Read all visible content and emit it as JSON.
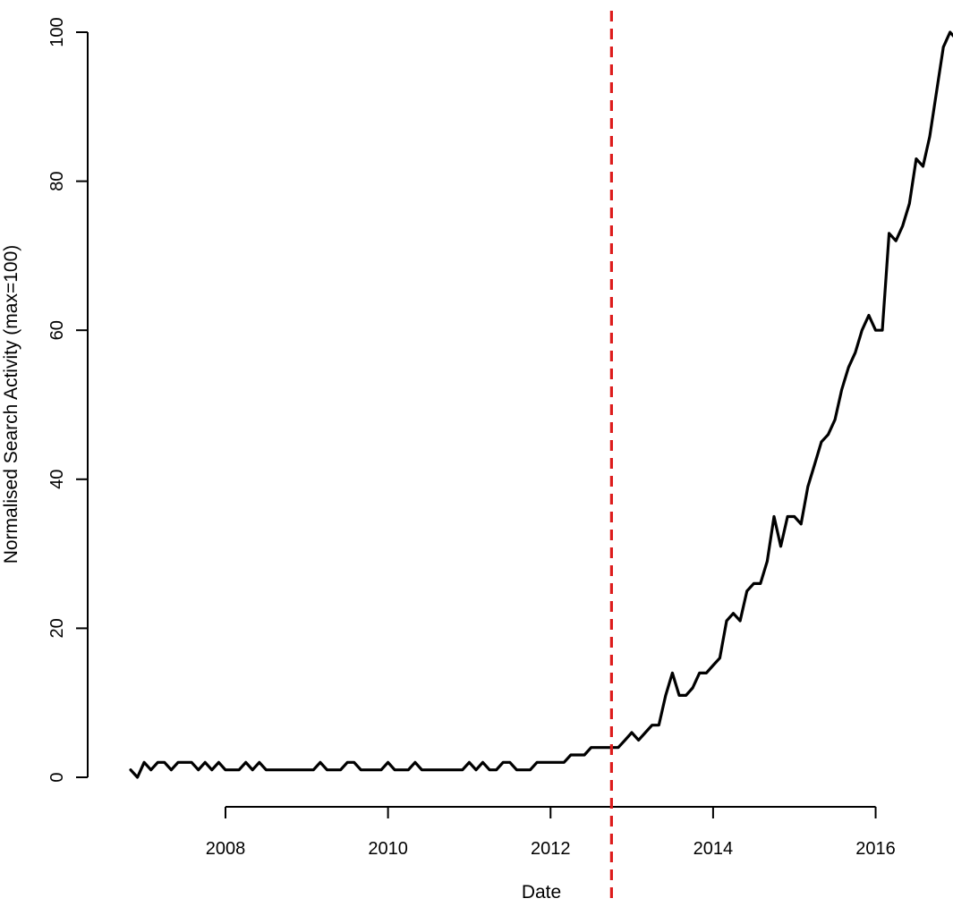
{
  "chart_data": {
    "type": "line",
    "xlabel": "Date",
    "ylabel": "Normalised Search Activity (max=100)",
    "xlim": [
      2006.8,
      2016.93
    ],
    "ylim": [
      0,
      100
    ],
    "x_ticks": [
      2008,
      2010,
      2012,
      2014,
      2016
    ],
    "x_tick_labels": [
      "2008",
      "2010",
      "2012",
      "2014",
      "2016"
    ],
    "y_ticks": [
      0,
      20,
      40,
      60,
      80,
      100
    ],
    "y_tick_labels": [
      "0",
      "20",
      "40",
      "60",
      "80",
      "100"
    ],
    "grid": false,
    "line_color": "#000000",
    "reference_line": {
      "orientation": "vertical",
      "x": 2012.75,
      "color": "#dd1c1c",
      "style": "dashed"
    },
    "series": [
      {
        "x_start": 2006.833,
        "x_step": 0.08333,
        "values": [
          1,
          0,
          2,
          1,
          2,
          2,
          1,
          2,
          2,
          2,
          1,
          2,
          1,
          2,
          1,
          1,
          1,
          2,
          1,
          2,
          1,
          1,
          1,
          1,
          1,
          1,
          1,
          1,
          2,
          1,
          1,
          1,
          2,
          2,
          1,
          1,
          1,
          1,
          2,
          1,
          1,
          1,
          2,
          1,
          1,
          1,
          1,
          1,
          1,
          1,
          2,
          1,
          2,
          1,
          1,
          2,
          2,
          1,
          1,
          1,
          2,
          2,
          2,
          2,
          2,
          3,
          3,
          3,
          4,
          4,
          4,
          4,
          4,
          5,
          6,
          5,
          6,
          7,
          7,
          11,
          14,
          11,
          11,
          12,
          14,
          14,
          15,
          16,
          21,
          22,
          21,
          25,
          26,
          26,
          29,
          35,
          31,
          35,
          35,
          34,
          39,
          42,
          45,
          46,
          48,
          52,
          55,
          57,
          60,
          62,
          60,
          60,
          73,
          72,
          74,
          77,
          83,
          82,
          86,
          92,
          98,
          100,
          99
        ]
      }
    ]
  }
}
